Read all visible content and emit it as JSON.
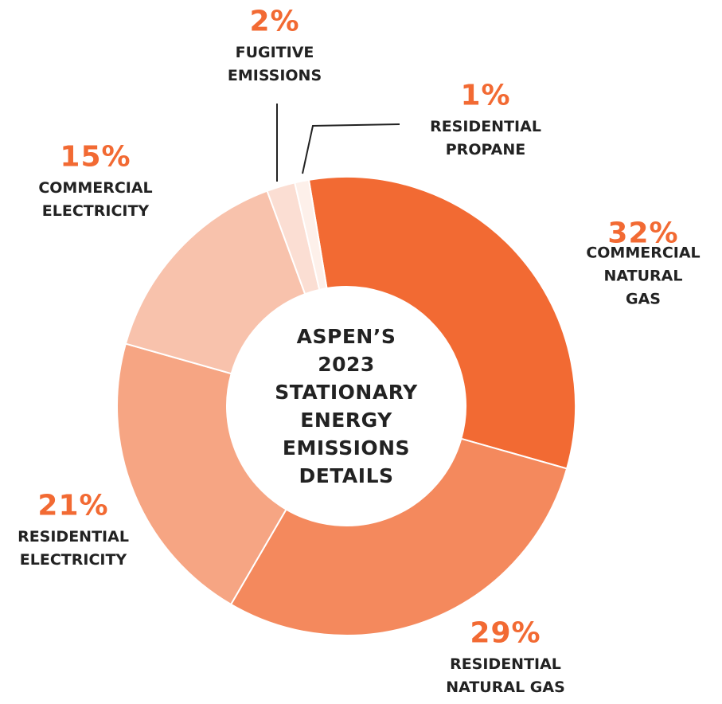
{
  "chart_data": {
    "type": "pie",
    "title": "ASPEN’S\n2023\nSTATIONARY\nENERGY\nEMISSIONS\nDETAILS",
    "categories": [
      "COMMERCIAL\nNATURAL GAS",
      "RESIDENTIAL\nNATURAL GAS",
      "RESIDENTIAL\nELECTRICITY",
      "COMMERCIAL\nELECTRICITY",
      "FUGITIVE\nEMISSIONS",
      "RESIDENTIAL\nPROPANE"
    ],
    "values": [
      32,
      29,
      21,
      15,
      2,
      1
    ],
    "value_labels": [
      "32%",
      "29%",
      "21%",
      "15%",
      "2%",
      "1%"
    ],
    "colors": [
      "#f26a33",
      "#f4895d",
      "#f6a583",
      "#f8c2ac",
      "#fbded3",
      "#fdf0ea"
    ]
  }
}
